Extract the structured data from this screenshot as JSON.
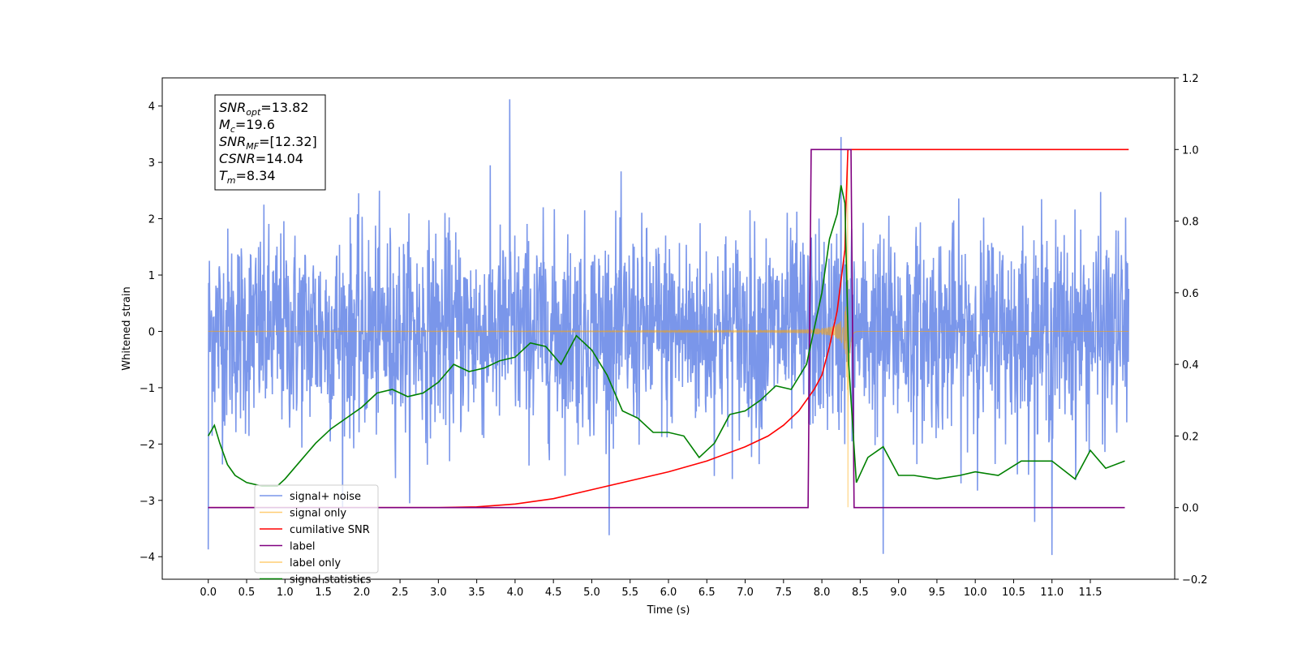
{
  "chart_data": {
    "type": "line",
    "xlabel": "Time (s)",
    "ylabel": "Whitened strain",
    "xlim": [
      -0.6,
      12.6
    ],
    "ylim": [
      -4.4,
      4.5
    ],
    "y2lim": [
      -0.2,
      1.2
    ],
    "x_ticks": [
      "0.0",
      "0.5",
      "1.0",
      "1.5",
      "2.0",
      "2.5",
      "3.0",
      "3.5",
      "4.0",
      "4.5",
      "5.0",
      "5.5",
      "6.0",
      "6.5",
      "7.0",
      "7.5",
      "8.0",
      "8.5",
      "9.0",
      "9.5",
      "10.0",
      "10.5",
      "11.0",
      "11.5"
    ],
    "y_ticks": [
      "-4",
      "-3",
      "-2",
      "-1",
      "0",
      "1",
      "2",
      "3",
      "4"
    ],
    "y2_ticks": [
      "-0.2",
      "0.0",
      "0.2",
      "0.4",
      "0.6",
      "0.8",
      "1.0",
      "1.2"
    ],
    "grid": false,
    "legend_position": "lower-left",
    "annotation": {
      "lines": [
        {
          "main": "SNR",
          "sub": "opt",
          "rest": "=13.82"
        },
        {
          "main": "M",
          "sub": "c",
          "rest": "=19.6"
        },
        {
          "main": "SNR",
          "sub": "MF",
          "rest": "=[12.32]"
        },
        {
          "main": "CSNR",
          "sub": "",
          "rest": "=14.04"
        },
        {
          "main": "T",
          "sub": "m",
          "rest": "=8.34"
        }
      ]
    },
    "series": [
      {
        "name": "signal+ noise",
        "color": "#4169e1",
        "axis": "left",
        "kind": "noise",
        "x_range": [
          0.0,
          12.0
        ],
        "std": 0.9,
        "y_extremes": [
          [
            3.93,
            4.12
          ],
          [
            0.0,
            -3.87
          ],
          [
            8.8,
            -3.95
          ],
          [
            11.0,
            -3.97
          ],
          [
            8.25,
            3.45
          ]
        ]
      },
      {
        "name": "signal only",
        "color": "#ffa500",
        "axis": "left",
        "kind": "chirp",
        "x_range": [
          0.0,
          12.0
        ],
        "merger_time": 8.34,
        "peak_amplitude": 3.3
      },
      {
        "name": "cumilative SNR",
        "color": "#ff0000",
        "axis": "right",
        "x": [
          0.0,
          3.0,
          3.5,
          4.0,
          4.5,
          5.0,
          5.5,
          6.0,
          6.5,
          7.0,
          7.3,
          7.5,
          7.7,
          7.9,
          8.0,
          8.1,
          8.2,
          8.3,
          8.31,
          8.34,
          12.0
        ],
        "y": [
          0.0,
          0.0,
          0.002,
          0.01,
          0.025,
          0.05,
          0.075,
          0.1,
          0.13,
          0.17,
          0.2,
          0.23,
          0.27,
          0.33,
          0.37,
          0.45,
          0.55,
          0.72,
          0.82,
          1.0,
          1.0
        ]
      },
      {
        "name": "label",
        "color": "#800080",
        "axis": "right",
        "x": [
          0.0,
          7.82,
          7.86,
          8.38,
          8.42,
          11.95
        ],
        "y": [
          0.0,
          0.0,
          1.0,
          1.0,
          0.0,
          0.0
        ]
      },
      {
        "name": "label only",
        "color": "#ffa500",
        "axis": "right",
        "kind": "hidden",
        "x": [],
        "y": []
      },
      {
        "name": "signal statistics",
        "color": "#008000",
        "axis": "right",
        "x": [
          0.0,
          0.08,
          0.15,
          0.25,
          0.35,
          0.5,
          0.7,
          0.9,
          1.0,
          1.2,
          1.4,
          1.6,
          1.8,
          2.0,
          2.2,
          2.4,
          2.6,
          2.8,
          3.0,
          3.2,
          3.4,
          3.6,
          3.8,
          4.0,
          4.2,
          4.4,
          4.6,
          4.8,
          5.0,
          5.2,
          5.4,
          5.6,
          5.8,
          6.0,
          6.2,
          6.4,
          6.6,
          6.8,
          7.0,
          7.2,
          7.4,
          7.6,
          7.8,
          8.0,
          8.1,
          8.2,
          8.25,
          8.3,
          8.35,
          8.45,
          8.6,
          8.8,
          9.0,
          9.2,
          9.5,
          9.8,
          10.0,
          10.3,
          10.6,
          11.0,
          11.3,
          11.5,
          11.7,
          11.95
        ],
        "y": [
          0.2,
          0.23,
          0.18,
          0.12,
          0.09,
          0.07,
          0.06,
          0.06,
          0.08,
          0.13,
          0.18,
          0.22,
          0.25,
          0.28,
          0.32,
          0.33,
          0.31,
          0.32,
          0.35,
          0.4,
          0.38,
          0.39,
          0.41,
          0.42,
          0.46,
          0.45,
          0.4,
          0.48,
          0.44,
          0.37,
          0.27,
          0.25,
          0.21,
          0.21,
          0.2,
          0.14,
          0.18,
          0.26,
          0.27,
          0.3,
          0.34,
          0.33,
          0.4,
          0.6,
          0.75,
          0.82,
          0.9,
          0.85,
          0.4,
          0.07,
          0.14,
          0.17,
          0.09,
          0.09,
          0.08,
          0.09,
          0.1,
          0.09,
          0.13,
          0.13,
          0.08,
          0.16,
          0.11,
          0.13
        ]
      }
    ]
  }
}
